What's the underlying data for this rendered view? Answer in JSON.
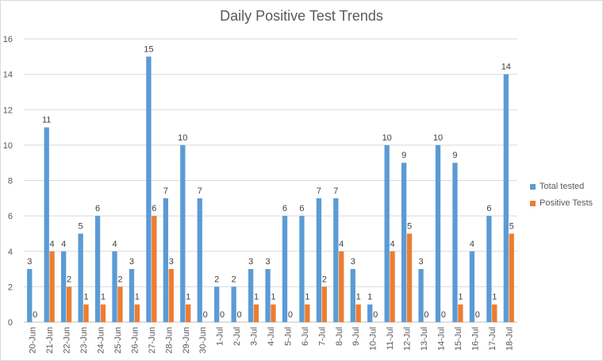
{
  "chart_data": {
    "type": "bar",
    "title": "Daily Positive Test Trends",
    "xlabel": "",
    "ylabel": "",
    "ylim": [
      0,
      16
    ],
    "yticks": [
      0,
      2,
      4,
      6,
      8,
      10,
      12,
      14,
      16
    ],
    "grid": true,
    "legend_position": "right",
    "categories": [
      "20-Jun",
      "21-Jun",
      "22-Jun",
      "23-Jun",
      "24-Jun",
      "25-Jun",
      "26-Jun",
      "27-Jun",
      "28-Jun",
      "29-Jun",
      "30-Jun",
      "1-Jul",
      "2-Jul",
      "3-Jul",
      "4-Jul",
      "5-Jul",
      "6-Jul",
      "7-Jul",
      "8-Jul",
      "9-Jul",
      "10-Jul",
      "11-Jul",
      "12-Jul",
      "13-Jul",
      "14-Jul",
      "15-Jul",
      "16-Jul",
      "17-Jul",
      "18-Jul"
    ],
    "series": [
      {
        "name": "Total tested",
        "color": "#5b9bd5",
        "values": [
          3,
          11,
          4,
          5,
          6,
          4,
          3,
          15,
          7,
          10,
          7,
          2,
          2,
          3,
          3,
          6,
          6,
          7,
          7,
          3,
          1,
          10,
          9,
          3,
          10,
          9,
          4,
          6,
          14
        ]
      },
      {
        "name": "Positive Tests",
        "color": "#ed7d31",
        "values": [
          0,
          4,
          2,
          1,
          1,
          2,
          1,
          6,
          3,
          1,
          0,
          0,
          0,
          1,
          1,
          0,
          1,
          2,
          4,
          1,
          0,
          4,
          5,
          0,
          0,
          1,
          0,
          1,
          5
        ]
      }
    ]
  }
}
